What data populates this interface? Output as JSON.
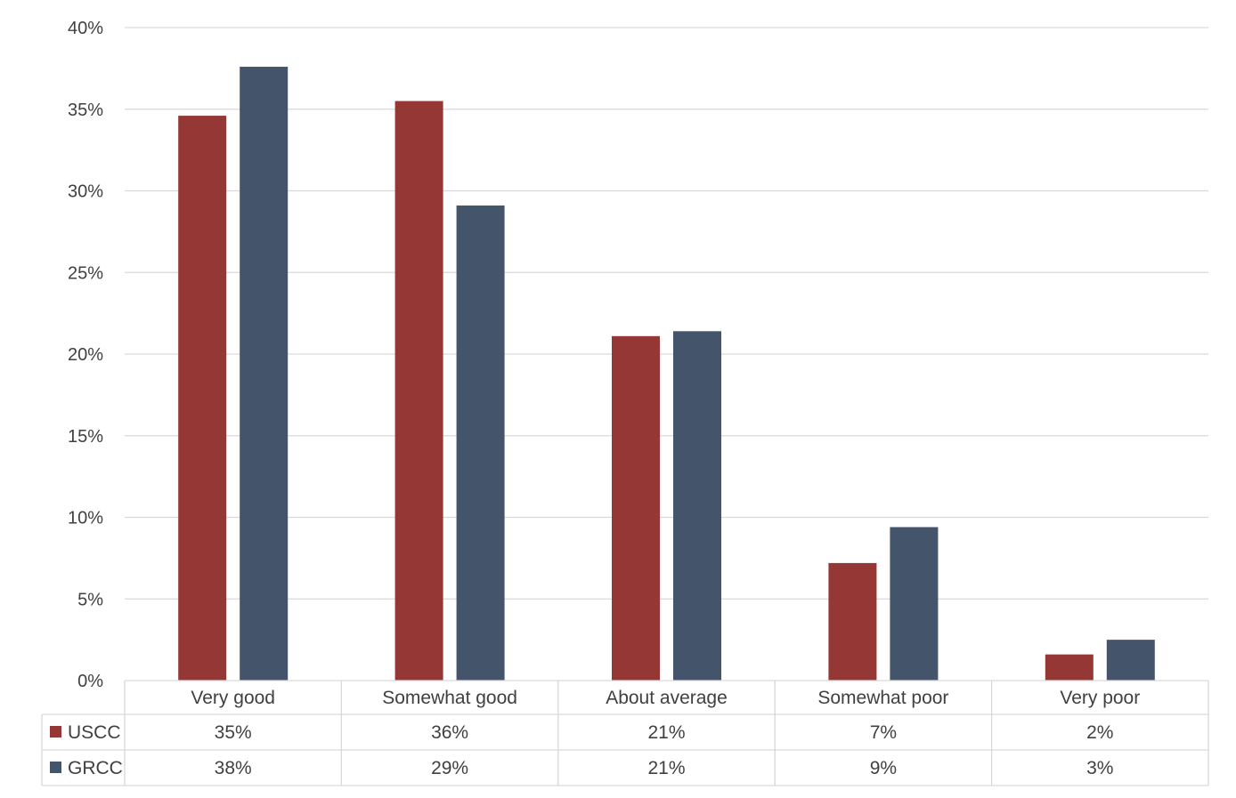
{
  "chart_data": {
    "type": "bar",
    "categories": [
      "Very good",
      "Somewhat good",
      "About average",
      "Somewhat poor",
      "Very poor"
    ],
    "series": [
      {
        "name": "USCC",
        "color": "#953735",
        "values": [
          34.6,
          35.5,
          21.1,
          7.2,
          1.6
        ],
        "table_labels": [
          "35%",
          "36%",
          "21%",
          "7%",
          "2%"
        ]
      },
      {
        "name": "GRCC",
        "color": "#44546a",
        "values": [
          37.6,
          29.1,
          21.4,
          9.4,
          2.5
        ],
        "table_labels": [
          "38%",
          "29%",
          "21%",
          "9%",
          "3%"
        ]
      }
    ],
    "ylim": [
      0,
      40
    ],
    "yticks": [
      "0%",
      "5%",
      "10%",
      "15%",
      "20%",
      "25%",
      "30%",
      "35%",
      "40%"
    ],
    "grid": true,
    "legend": "data-table"
  }
}
